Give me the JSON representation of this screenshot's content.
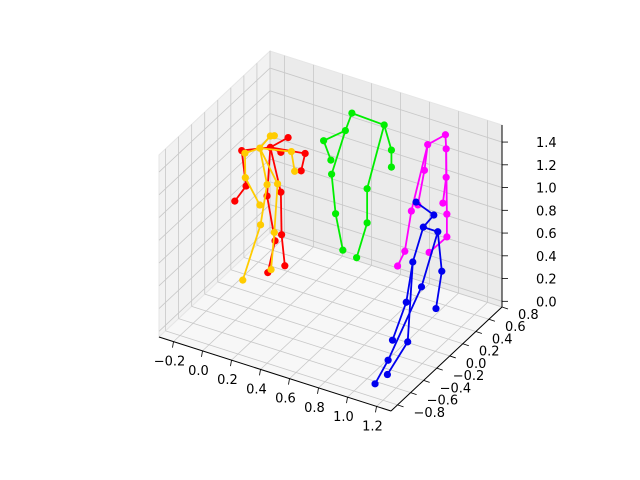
{
  "chart_data": {
    "type": "scatter",
    "subtype": "3d-skeleton-poses",
    "title": "",
    "xlabel": "",
    "ylabel": "",
    "zlabel": "",
    "xlim": [
      -0.3,
      1.3
    ],
    "ylim": [
      -0.9,
      0.8
    ],
    "zlim": [
      -0.05,
      1.55
    ],
    "grid": true,
    "legend": "none",
    "x_ticks": [
      "−0.2",
      "0.0",
      "0.2",
      "0.4",
      "0.6",
      "0.8",
      "1.0",
      "1.2"
    ],
    "y_ticks": [
      "−0.8",
      "−0.6",
      "−0.4",
      "−0.2",
      "0.0",
      "0.2",
      "0.4",
      "0.6",
      "0.8"
    ],
    "z_ticks": [
      "0.0",
      "0.2",
      "0.4",
      "0.6",
      "0.8",
      "1.0",
      "1.2",
      "1.4"
    ],
    "series": [
      {
        "color": "#ff0000",
        "points": [
          [
            -0.05,
            0.25,
            1.1
          ],
          [
            0.05,
            0.3,
            1.2
          ],
          [
            0.0,
            0.3,
            1.05
          ],
          [
            -0.18,
            0.1,
            1.1
          ],
          [
            -0.15,
            0.1,
            0.8
          ],
          [
            -0.25,
            0.15,
            0.6
          ],
          [
            0.1,
            0.45,
            1.0
          ],
          [
            0.05,
            0.5,
            0.8
          ],
          [
            -0.05,
            0.2,
            0.7
          ],
          [
            0.05,
            0.1,
            0.4
          ],
          [
            0.0,
            0.1,
            0.1
          ],
          [
            0.0,
            0.3,
            0.7
          ],
          [
            0.05,
            0.2,
            0.4
          ],
          [
            0.05,
            0.25,
            0.1
          ]
        ],
        "edges": [
          [
            0,
            1
          ],
          [
            0,
            2
          ],
          [
            0,
            3
          ],
          [
            3,
            4
          ],
          [
            4,
            5
          ],
          [
            0,
            6
          ],
          [
            6,
            7
          ],
          [
            0,
            8
          ],
          [
            8,
            9
          ],
          [
            9,
            10
          ],
          [
            0,
            11
          ],
          [
            11,
            12
          ],
          [
            12,
            13
          ]
        ]
      },
      {
        "color": "#ffcc00",
        "points": [
          [
            -0.1,
            0.2,
            1.1
          ],
          [
            -0.05,
            0.25,
            1.2
          ],
          [
            0.0,
            0.2,
            1.25
          ],
          [
            -0.18,
            0.15,
            1.05
          ],
          [
            -0.2,
            0.2,
            0.8
          ],
          [
            -0.1,
            0.2,
            0.6
          ],
          [
            0.05,
            0.35,
            1.05
          ],
          [
            0.05,
            0.4,
            0.85
          ],
          [
            -0.05,
            0.2,
            0.8
          ],
          [
            -0.05,
            0.1,
            0.5
          ],
          [
            -0.15,
            0.05,
            0.0
          ],
          [
            0.0,
            0.25,
            0.8
          ],
          [
            0.0,
            0.2,
            0.4
          ],
          [
            0.0,
            0.15,
            0.1
          ]
        ],
        "edges": [
          [
            0,
            1
          ],
          [
            1,
            2
          ],
          [
            0,
            3
          ],
          [
            3,
            4
          ],
          [
            4,
            5
          ],
          [
            0,
            6
          ],
          [
            6,
            7
          ],
          [
            0,
            8
          ],
          [
            8,
            9
          ],
          [
            9,
            10
          ],
          [
            0,
            11
          ],
          [
            11,
            12
          ],
          [
            12,
            13
          ]
        ]
      },
      {
        "color": "#00ee00",
        "points": [
          [
            0.4,
            0.4,
            1.35
          ],
          [
            0.4,
            0.5,
            1.45
          ],
          [
            0.6,
            0.55,
            1.4
          ],
          [
            0.25,
            0.4,
            1.2
          ],
          [
            0.3,
            0.4,
            1.05
          ],
          [
            0.65,
            0.55,
            1.2
          ],
          [
            0.65,
            0.55,
            1.05
          ],
          [
            0.35,
            0.3,
            1.0
          ],
          [
            0.4,
            0.25,
            0.7
          ],
          [
            0.45,
            0.25,
            0.4
          ],
          [
            0.55,
            0.4,
            0.9
          ],
          [
            0.55,
            0.4,
            0.6
          ],
          [
            0.5,
            0.35,
            0.3
          ]
        ],
        "edges": [
          [
            0,
            1
          ],
          [
            1,
            2
          ],
          [
            0,
            3
          ],
          [
            3,
            4
          ],
          [
            2,
            5
          ],
          [
            5,
            6
          ],
          [
            0,
            7
          ],
          [
            7,
            8
          ],
          [
            8,
            9
          ],
          [
            2,
            10
          ],
          [
            10,
            11
          ],
          [
            11,
            12
          ]
        ]
      },
      {
        "color": "#ff00ff",
        "points": [
          [
            1.0,
            0.6,
            1.45
          ],
          [
            0.9,
            0.55,
            1.35
          ],
          [
            1.05,
            0.5,
            1.4
          ],
          [
            0.9,
            0.5,
            1.15
          ],
          [
            0.9,
            0.4,
            0.9
          ],
          [
            1.05,
            0.5,
            1.15
          ],
          [
            1.05,
            0.45,
            0.95
          ],
          [
            0.9,
            0.3,
            0.9
          ],
          [
            0.9,
            0.2,
            0.6
          ],
          [
            0.85,
            0.2,
            0.45
          ],
          [
            1.1,
            0.4,
            0.9
          ],
          [
            1.1,
            0.4,
            0.7
          ],
          [
            1.0,
            0.35,
            0.55
          ]
        ],
        "edges": [
          [
            0,
            1
          ],
          [
            0,
            2
          ],
          [
            1,
            3
          ],
          [
            3,
            4
          ],
          [
            2,
            5
          ],
          [
            5,
            6
          ],
          [
            1,
            7
          ],
          [
            7,
            8
          ],
          [
            8,
            9
          ],
          [
            2,
            10
          ],
          [
            10,
            11
          ],
          [
            11,
            12
          ]
        ]
      },
      {
        "color": "#0000ee",
        "points": [
          [
            1.0,
            0.15,
            1.1
          ],
          [
            1.1,
            0.2,
            1.0
          ],
          [
            1.05,
            0.15,
            0.9
          ],
          [
            1.0,
            0.1,
            0.6
          ],
          [
            1.0,
            0.0,
            0.3
          ],
          [
            0.95,
            -0.1,
            0.0
          ],
          [
            1.1,
            -0.2,
            0.1
          ],
          [
            1.05,
            -0.4,
            -0.1
          ],
          [
            1.15,
            0.15,
            0.9
          ],
          [
            1.2,
            0.1,
            0.6
          ],
          [
            1.25,
            -0.1,
            0.4
          ],
          [
            1.15,
            -0.1,
            0.55
          ],
          [
            1.1,
            -0.5,
            0.1
          ],
          [
            1.1,
            -0.7,
            0.0
          ]
        ],
        "edges": [
          [
            0,
            1
          ],
          [
            1,
            2
          ],
          [
            2,
            3
          ],
          [
            3,
            4
          ],
          [
            4,
            5
          ],
          [
            3,
            6
          ],
          [
            6,
            7
          ],
          [
            2,
            8
          ],
          [
            8,
            9
          ],
          [
            9,
            10
          ],
          [
            8,
            11
          ],
          [
            11,
            12
          ],
          [
            12,
            13
          ]
        ]
      }
    ]
  }
}
